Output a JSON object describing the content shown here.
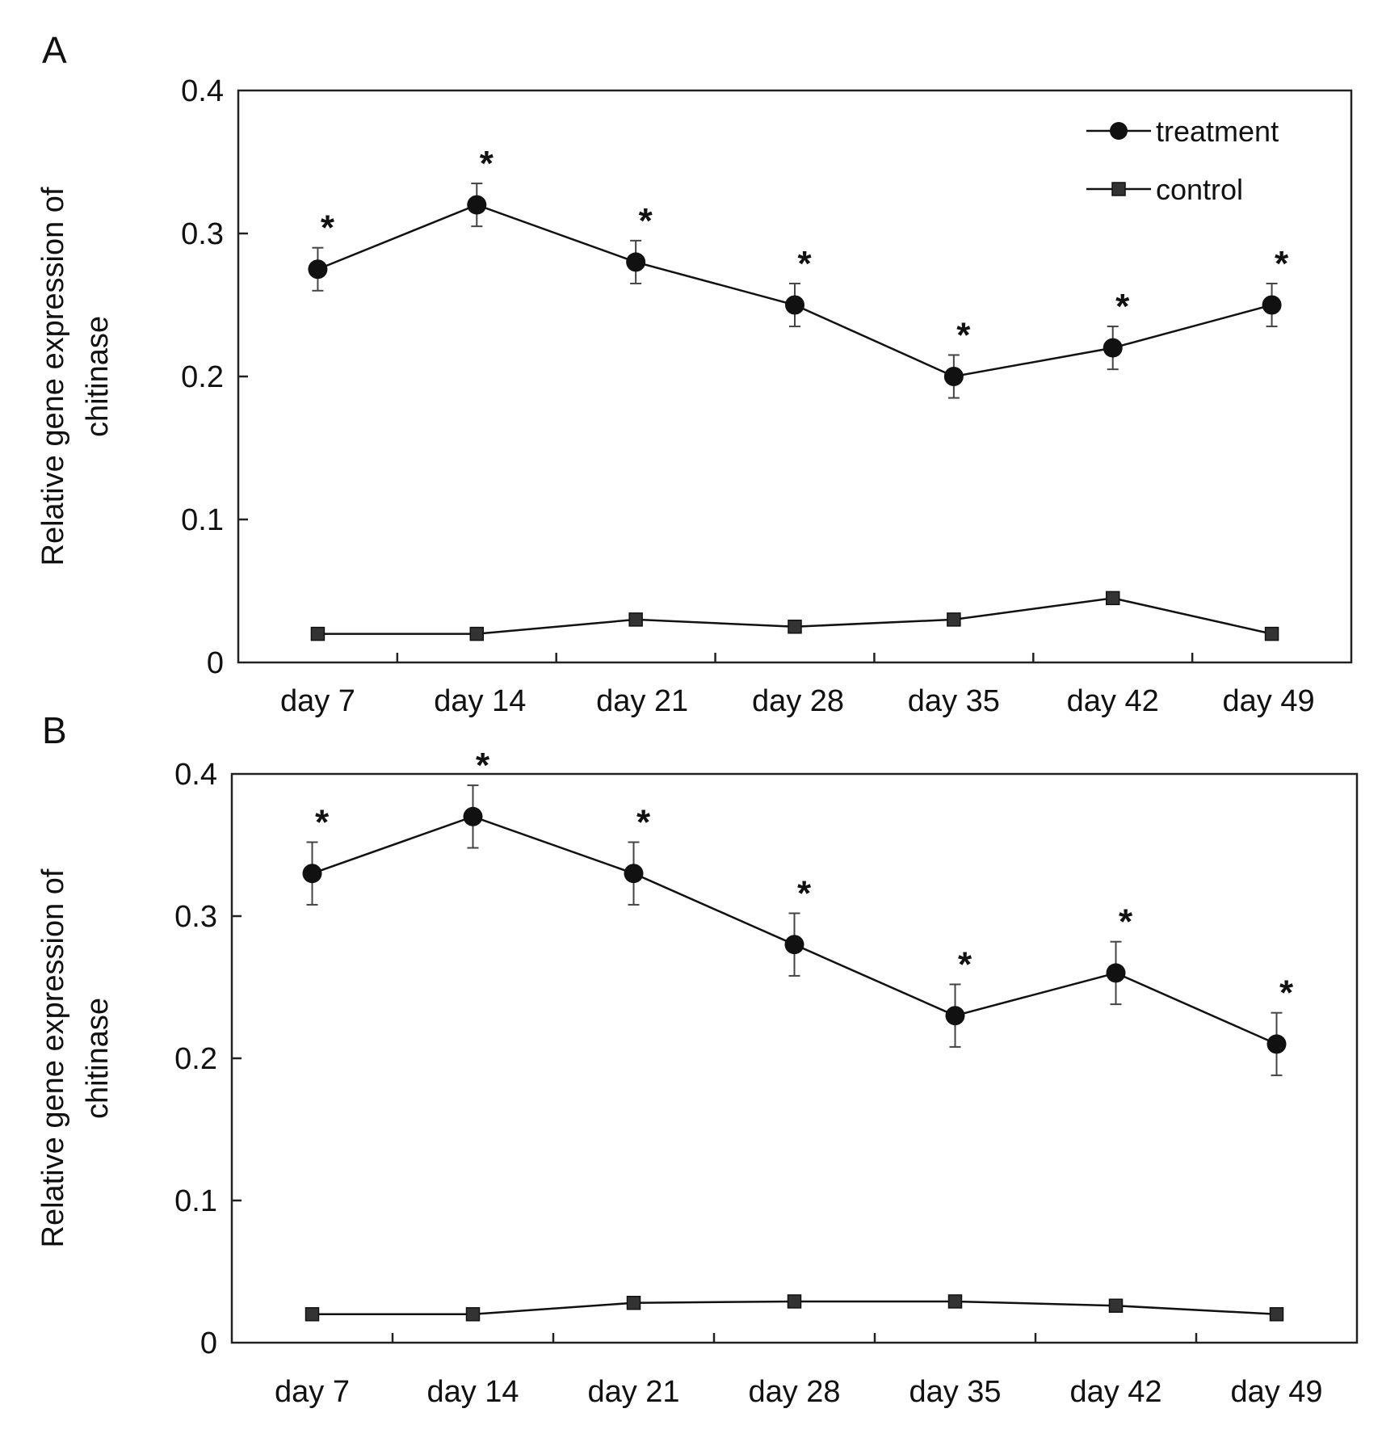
{
  "chart_data": [
    {
      "type": "line",
      "panel": "A",
      "ylabel_lines": [
        "Relative gene expression of",
        "chitinase"
      ],
      "ylim": [
        0,
        0.4
      ],
      "yticks": [
        "0.4",
        "0.3",
        "0.2",
        "0.1",
        "0"
      ],
      "categories": [
        "day 7",
        "day 14",
        "day 21",
        "day 28",
        "day 35",
        "day 42",
        "day 49"
      ],
      "legend": {
        "placement": "top-right",
        "entries": [
          "treatment",
          "control"
        ]
      },
      "series": [
        {
          "name": "treatment",
          "marker": "circle",
          "values": [
            0.275,
            0.32,
            0.28,
            0.25,
            0.2,
            0.22,
            0.25
          ],
          "errors": [
            0.015,
            0.015,
            0.015,
            0.015,
            0.015,
            0.015,
            0.015
          ]
        },
        {
          "name": "control",
          "marker": "square",
          "values": [
            0.02,
            0.02,
            0.03,
            0.025,
            0.03,
            0.045,
            0.02
          ]
        }
      ],
      "significance": [
        "*",
        "*",
        "*",
        "*",
        "*",
        "*",
        "*"
      ]
    },
    {
      "type": "line",
      "panel": "B",
      "ylabel_lines": [
        "Relative gene expression of",
        "chitinase"
      ],
      "ylim": [
        0,
        0.4
      ],
      "yticks": [
        "0.4",
        "0.3",
        "0.2",
        "0.1",
        "0"
      ],
      "categories": [
        "day 7",
        "day 14",
        "day 21",
        "day 28",
        "day 35",
        "day 42",
        "day 49"
      ],
      "series": [
        {
          "name": "treatment",
          "marker": "circle",
          "values": [
            0.33,
            0.37,
            0.33,
            0.28,
            0.23,
            0.26,
            0.21
          ],
          "errors": [
            0.022,
            0.022,
            0.022,
            0.022,
            0.022,
            0.022,
            0.022
          ]
        },
        {
          "name": "control",
          "marker": "square",
          "values": [
            0.02,
            0.02,
            0.028,
            0.029,
            0.029,
            0.026,
            0.02
          ]
        }
      ],
      "significance": [
        "*",
        "*",
        "*",
        "*",
        "*",
        "*",
        "*"
      ]
    }
  ]
}
